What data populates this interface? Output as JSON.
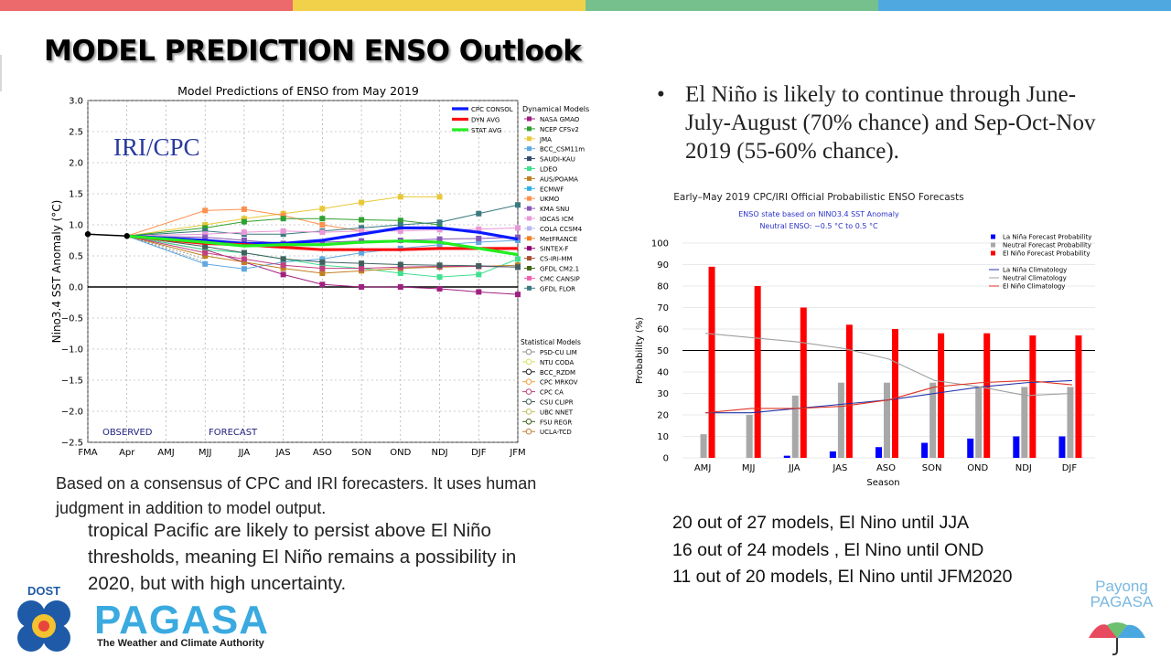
{
  "slide": {
    "title": "MODEL PREDICTION ENSO Outlook",
    "stripe_colors": [
      "#ec6a6c",
      "#f2d14a",
      "#76c08d",
      "#4fa9e0"
    ]
  },
  "left_chart": {
    "title": "Model Predictions of ENSO from May 2019",
    "overlay_label": "IRI/CPC",
    "ylabel": "Nino3.4 SST Anomaly (°C)",
    "observed_label": "OBSERVED",
    "forecast_label": "FORECAST",
    "x_ticks": [
      "FMA",
      "Apr",
      "AMJ",
      "MJJ",
      "JJA",
      "JAS",
      "ASO",
      "SON",
      "OND",
      "NDJ",
      "DJF",
      "JFM"
    ],
    "y_ticks": [
      "3.0",
      "2.5",
      "2.0",
      "1.5",
      "1.0",
      "0.5",
      "0.0",
      "−0.5",
      "−1.0",
      "−1.5",
      "−2.0",
      "−2.5"
    ],
    "legend_avg": [
      {
        "label": "CPC CONSOL",
        "color": "#0a1aff"
      },
      {
        "label": "DYN AVG",
        "color": "#ff1010"
      },
      {
        "label": "STAT AVG",
        "color": "#22ee22"
      }
    ],
    "dyn_header": "Dynamical Models",
    "dynamical_models": [
      {
        "label": "NASA GMAO",
        "color": "#a02080"
      },
      {
        "label": "NCEP CFSv2",
        "color": "#30a030"
      },
      {
        "label": "JMA",
        "color": "#e8c838"
      },
      {
        "label": "BCC_CSM11m",
        "color": "#60a8e0"
      },
      {
        "label": "SAUDI-KAU",
        "color": "#304a70"
      },
      {
        "label": "LDEO",
        "color": "#40e090"
      },
      {
        "label": "AUS/POAMA",
        "color": "#c08020"
      },
      {
        "label": "ECMWF",
        "color": "#30b0e8"
      },
      {
        "label": "UKMO",
        "color": "#ff9050"
      },
      {
        "label": "KMA SNU",
        "color": "#8858b8"
      },
      {
        "label": "IOCAS ICM",
        "color": "#e898d8"
      },
      {
        "label": "COLA CCSM4",
        "color": "#b8b8f0"
      },
      {
        "label": "MetFRANCE",
        "color": "#f08020"
      },
      {
        "label": "SINTEX-F",
        "color": "#900070"
      },
      {
        "label": "CS-IRI-MM",
        "color": "#a85030"
      },
      {
        "label": "GFDL CM2.1",
        "color": "#406818"
      },
      {
        "label": "CMC CANSIP",
        "color": "#f060b0"
      },
      {
        "label": "GFDL FLOR",
        "color": "#3a7a80"
      }
    ],
    "stat_header": "Statistical Models",
    "statistical_models": [
      {
        "label": "PSD-CU LIM",
        "color": "#909090"
      },
      {
        "label": "NTU CODA",
        "color": "#d8e060"
      },
      {
        "label": "BCC_RZDM",
        "color": "#202020"
      },
      {
        "label": "CPC MRKOV",
        "color": "#f0a040"
      },
      {
        "label": "CPC CA",
        "color": "#c04080"
      },
      {
        "label": "CSU CLIPR",
        "color": "#406060"
      },
      {
        "label": "UBC NNET",
        "color": "#c0c060"
      },
      {
        "label": "FSU REGR",
        "color": "#406020"
      },
      {
        "label": "UCLA-TCD",
        "color": "#c08030"
      }
    ]
  },
  "chart_data": [
    {
      "type": "line",
      "title": "Model Predictions of ENSO from May 2019",
      "xlabel": "",
      "ylabel": "Nino3.4 SST Anomaly (°C)",
      "ylim": [
        -2.5,
        3.0
      ],
      "grid": true,
      "categories": [
        "FMA",
        "Apr",
        "AMJ",
        "MJJ",
        "JJA",
        "JAS",
        "ASO",
        "SON",
        "OND",
        "NDJ",
        "DJF",
        "JFM"
      ],
      "observed": [
        0.85,
        0.82
      ],
      "series": [
        {
          "name": "CPC CONSOL",
          "values": [
            null,
            0.82,
            null,
            0.75,
            0.7,
            0.7,
            0.75,
            0.85,
            0.95,
            0.95,
            0.88,
            0.77
          ]
        },
        {
          "name": "DYN AVG",
          "values": [
            null,
            0.82,
            null,
            0.7,
            0.68,
            0.64,
            0.6,
            0.6,
            0.6,
            0.62,
            0.62,
            0.62
          ]
        },
        {
          "name": "STAT AVG",
          "values": [
            null,
            0.82,
            null,
            0.72,
            0.66,
            0.68,
            0.68,
            0.72,
            0.74,
            0.72,
            0.62,
            0.52
          ]
        },
        {
          "name": "JMA",
          "values": [
            null,
            0.82,
            null,
            1.0,
            1.1,
            1.18,
            1.26,
            1.36,
            1.45,
            1.45,
            null,
            null
          ]
        },
        {
          "name": "UKMO",
          "values": [
            null,
            0.82,
            null,
            1.23,
            1.25,
            1.15,
            1.0,
            0.9,
            null,
            null,
            null,
            null
          ]
        },
        {
          "name": "NCEP CFSv2",
          "values": [
            null,
            0.82,
            null,
            0.95,
            1.05,
            1.1,
            1.1,
            1.08,
            1.07,
            1.0,
            null,
            null
          ]
        },
        {
          "name": "GFDL FLOR",
          "values": [
            null,
            0.82,
            null,
            0.9,
            0.85,
            0.85,
            0.9,
            0.95,
            1.0,
            1.04,
            1.18,
            1.32
          ]
        },
        {
          "name": "NASA GMAO",
          "values": [
            null,
            0.82,
            null,
            0.6,
            0.4,
            0.2,
            0.04,
            0.0,
            0.0,
            -0.03,
            -0.08,
            -0.12
          ]
        },
        {
          "name": "BCC_CSM11m",
          "values": [
            null,
            0.82,
            null,
            0.37,
            0.29,
            0.4,
            0.45,
            0.55,
            0.62,
            0.68,
            0.72,
            0.75
          ]
        },
        {
          "name": "LDEO",
          "values": [
            null,
            0.82,
            null,
            0.6,
            0.55,
            0.45,
            0.35,
            0.3,
            0.22,
            0.16,
            0.2,
            0.45
          ]
        },
        {
          "name": "AUS/POAMA",
          "values": [
            null,
            0.82,
            null,
            0.5,
            0.4,
            0.3,
            0.22,
            0.26,
            0.3,
            0.32,
            0.33,
            0.35
          ]
        },
        {
          "name": "IOCAS ICM",
          "values": [
            null,
            0.82,
            null,
            0.85,
            0.88,
            0.9,
            0.88,
            0.9,
            0.9,
            0.92,
            0.93,
            0.95
          ]
        },
        {
          "name": "CPC CA",
          "values": [
            null,
            0.82,
            null,
            0.55,
            0.45,
            0.35,
            0.3,
            0.3,
            0.32,
            0.33,
            0.33,
            0.32
          ]
        },
        {
          "name": "CSU CLIPR",
          "values": [
            null,
            0.82,
            null,
            0.65,
            0.55,
            0.45,
            0.4,
            0.38,
            0.36,
            0.35,
            0.34,
            0.32
          ]
        },
        {
          "name": "KMA SNU",
          "values": [
            null,
            0.82,
            null,
            0.8,
            0.75,
            0.7,
            0.72,
            0.74,
            0.75,
            0.77,
            0.78,
            0.8
          ]
        }
      ]
    },
    {
      "type": "bar",
      "title": "Early–May 2019 CPC/IRI Official Probabilistic ENSO Forecasts",
      "subtitle": "ENSO state based on NINO3.4 SST Anomaly",
      "subtitle2": "Neutral ENSO: −0.5 °C to 0.5 °C",
      "xlabel": "Season",
      "ylabel": "Probability (%)",
      "ylim": [
        0,
        100
      ],
      "grid": true,
      "legend_position": "top-right",
      "categories": [
        "AMJ",
        "MJJ",
        "JJA",
        "JAS",
        "ASO",
        "SON",
        "OND",
        "NDJ",
        "DJF"
      ],
      "series": [
        {
          "name": "La Niña Forecast Probability",
          "color": "#0000ff",
          "values": [
            0,
            0,
            1,
            3,
            5,
            7,
            9,
            10,
            10
          ]
        },
        {
          "name": "Neutral Forecast Probability",
          "color": "#a8a8a8",
          "values": [
            11,
            20,
            29,
            35,
            35,
            35,
            33,
            33,
            33
          ]
        },
        {
          "name": "El Niño Forecast Probability",
          "color": "#ff0000",
          "values": [
            89,
            80,
            70,
            62,
            60,
            58,
            58,
            57,
            57
          ]
        }
      ],
      "lines": [
        {
          "name": "La Niña Climatology",
          "color": "#2233aa",
          "values": [
            21,
            21,
            23,
            25,
            27,
            30,
            33,
            35,
            36
          ]
        },
        {
          "name": "Neutral Climatology",
          "color": "#a0a0a0",
          "values": [
            58,
            56,
            54,
            51,
            46,
            36,
            33,
            29,
            30
          ]
        },
        {
          "name": "El Niño Climatology",
          "color": "#dd3322",
          "values": [
            21,
            23,
            23,
            24,
            27,
            33,
            35,
            36,
            34
          ]
        }
      ],
      "reference_line": 50,
      "y_ticks": [
        "0",
        "10",
        "20",
        "30",
        "40",
        "50",
        "60",
        "70",
        "80",
        "90",
        "100"
      ]
    }
  ],
  "text": {
    "bullet_symbol": "•",
    "bullet": "El Niño is likely to continue through June-July-August (70% chance) and Sep-Oct-Nov 2019 (55-60% chance).",
    "left_para": "Based on a consensus of CPC and IRI forecasters. It uses human  judgment  in addition to model output.",
    "overlap_para": "tropical Pacific are likely to persist above El Niño thresholds, meaning El Niño remains a possibility in 2020, but with high uncertainty.",
    "counts": [
      "20 out of 27 models, El Nino until   JJA",
      "16 out of 24 models , El Nino until OND",
      "11 out of 20 models, El Nino until  JFM2020"
    ]
  },
  "logos": {
    "dost": "DOST",
    "pagasa": "PAGASA",
    "pagasa_tag": "The Weather and Climate Authority",
    "payong_line1": "Payong",
    "payong_line2": "PAGASA"
  }
}
